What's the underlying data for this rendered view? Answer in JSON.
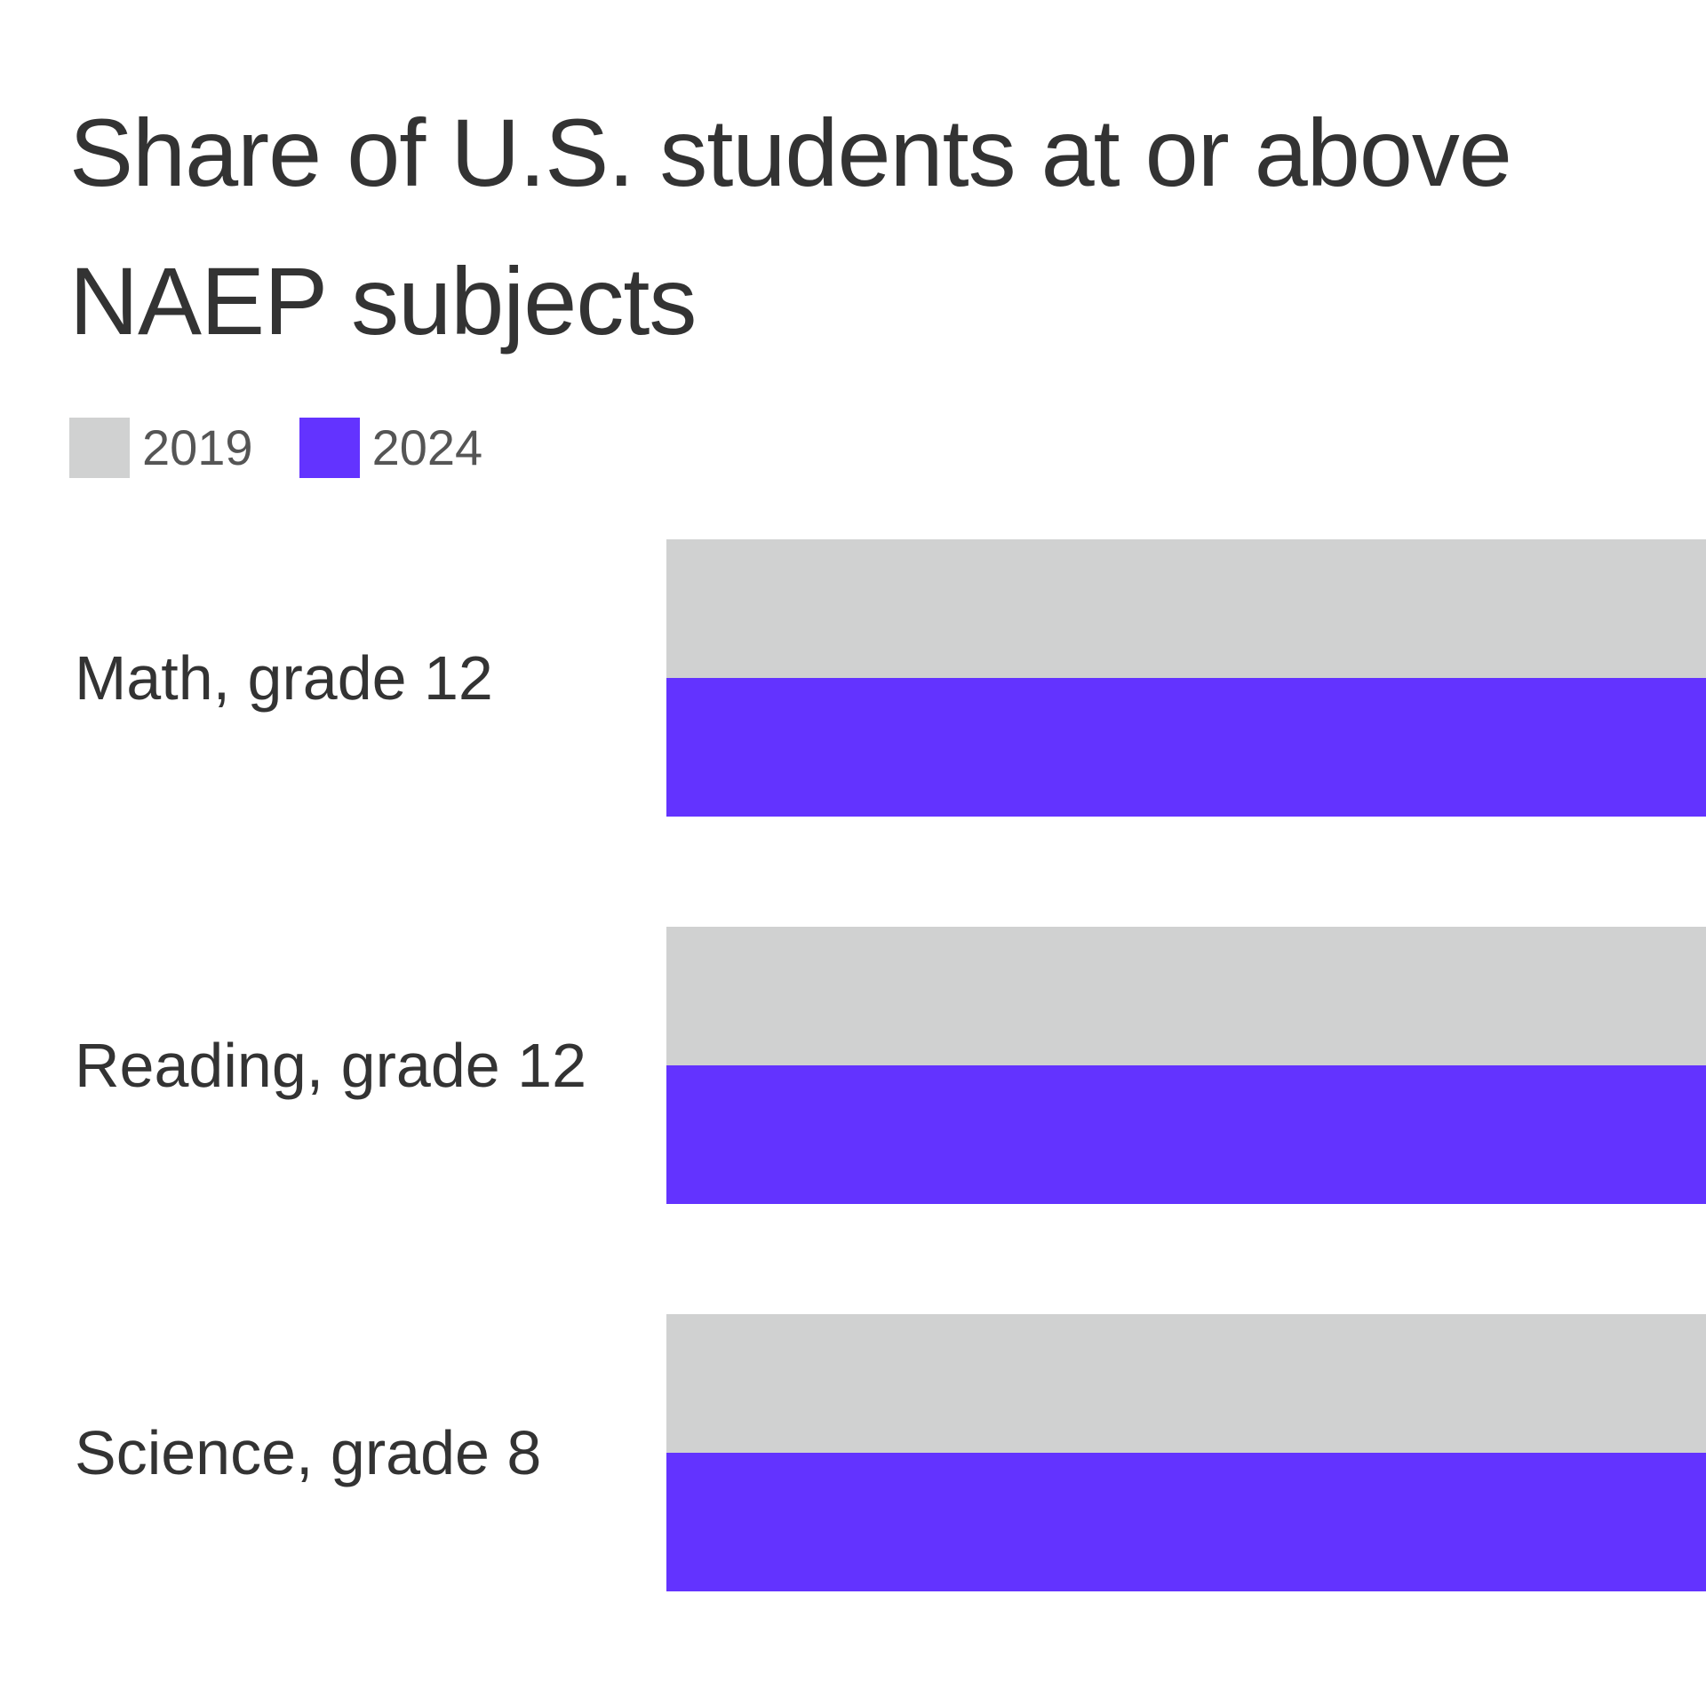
{
  "chart_data": {
    "type": "bar",
    "orientation": "horizontal",
    "title_lines": [
      "Share of U.S. students at or above",
      "NAEP subjects"
    ],
    "categories": [
      "Math, grade 12",
      "Reading, grade 12",
      "Science, grade 8"
    ],
    "series": [
      {
        "name": "2019",
        "color": "#d0d1d1",
        "values": [
          null,
          null,
          null
        ]
      },
      {
        "name": "2024",
        "color": "#6333ff",
        "values": [
          null,
          null,
          null
        ]
      }
    ],
    "legend_position": "top-left",
    "grid": false
  }
}
